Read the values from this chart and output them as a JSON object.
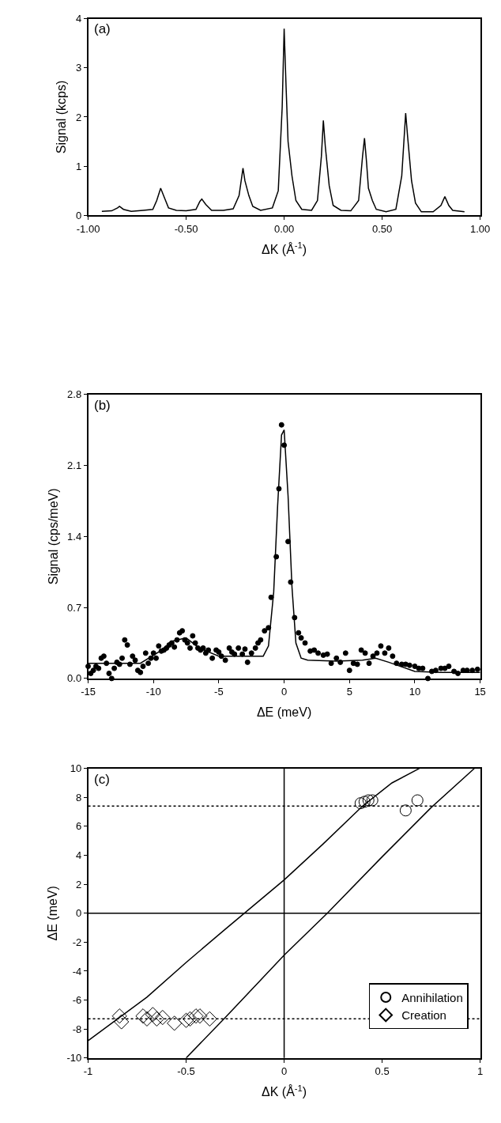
{
  "chart_data": [
    {
      "type": "line",
      "xlabel": "ΔK (Å$^{-1}$)",
      "ylabel": "Signal (kcps)",
      "annotations": [
        "(a)"
      ],
      "xlim": [
        -1,
        1
      ],
      "xticks": [
        {
          "value": -1,
          "label": "-1.00"
        },
        {
          "value": -0.5,
          "label": "-0.50"
        },
        {
          "value": 0,
          "label": "0.00"
        },
        {
          "value": 0.5,
          "label": "0.50"
        },
        {
          "value": 1,
          "label": "1.00"
        }
      ],
      "ylim": [
        0,
        4
      ],
      "yticks": [
        0,
        1,
        2,
        3,
        4
      ],
      "grid": false,
      "legend": false,
      "marker": "none",
      "series": [
        {
          "color": "#000000",
          "x": [
            -0.93,
            -0.88,
            -0.85,
            -0.84,
            -0.82,
            -0.78,
            -0.72,
            -0.67,
            -0.65,
            -0.63,
            -0.61,
            -0.59,
            -0.55,
            -0.5,
            -0.45,
            -0.43,
            -0.42,
            -0.4,
            -0.37,
            -0.31,
            -0.26,
            -0.23,
            -0.21,
            -0.2,
            -0.18,
            -0.16,
            -0.12,
            -0.06,
            -0.03,
            -0.01,
            0.0,
            0.01,
            0.02,
            0.04,
            0.06,
            0.09,
            0.14,
            0.17,
            0.19,
            0.2,
            0.21,
            0.23,
            0.25,
            0.29,
            0.34,
            0.38,
            0.4,
            0.41,
            0.42,
            0.43,
            0.45,
            0.47,
            0.52,
            0.57,
            0.6,
            0.62,
            0.63,
            0.65,
            0.67,
            0.7,
            0.76,
            0.8,
            0.82,
            0.84,
            0.86,
            0.92
          ],
          "values": [
            0.08,
            0.09,
            0.15,
            0.18,
            0.12,
            0.08,
            0.1,
            0.12,
            0.3,
            0.55,
            0.35,
            0.15,
            0.1,
            0.09,
            0.12,
            0.28,
            0.33,
            0.22,
            0.1,
            0.1,
            0.13,
            0.4,
            0.96,
            0.7,
            0.4,
            0.18,
            0.1,
            0.15,
            0.5,
            2.2,
            3.8,
            2.6,
            1.5,
            0.8,
            0.3,
            0.12,
            0.1,
            0.3,
            1.2,
            1.93,
            1.4,
            0.6,
            0.2,
            0.1,
            0.09,
            0.3,
            1.2,
            1.57,
            1.1,
            0.55,
            0.3,
            0.12,
            0.07,
            0.12,
            0.8,
            2.08,
            1.6,
            0.7,
            0.25,
            0.07,
            0.07,
            0.2,
            0.38,
            0.2,
            0.1,
            0.07
          ]
        }
      ]
    },
    {
      "type": "scatter",
      "xlabel": "ΔE (meV)",
      "ylabel": "Signal (cps/meV)",
      "annotations": [
        "(b)"
      ],
      "xlim": [
        -15,
        15
      ],
      "xticks": [
        -15,
        -10,
        -5,
        0,
        5,
        10,
        15
      ],
      "ylim": [
        0,
        2.8
      ],
      "yticks": [
        {
          "value": 0,
          "label": "0.0"
        },
        0.7,
        1.4,
        2.1,
        2.8
      ],
      "grid": false,
      "legend": false,
      "marker": "circle",
      "series": [
        {
          "color": "#000000",
          "x": [
            -15,
            -14.8,
            -14.6,
            -14.4,
            -14.2,
            -14,
            -13.8,
            -13.6,
            -13.4,
            -13.2,
            -13,
            -12.8,
            -12.6,
            -12.4,
            -12.2,
            -12,
            -11.8,
            -11.6,
            -11.4,
            -11.2,
            -11,
            -10.8,
            -10.6,
            -10.4,
            -10.2,
            -10,
            -9.8,
            -9.6,
            -9.4,
            -9.2,
            -9,
            -8.8,
            -8.6,
            -8.4,
            -8.2,
            -8,
            -7.8,
            -7.6,
            -7.4,
            -7.2,
            -7,
            -6.8,
            -6.6,
            -6.4,
            -6.2,
            -6,
            -5.8,
            -5.5,
            -5.2,
            -5,
            -4.8,
            -4.5,
            -4.2,
            -4,
            -3.8,
            -3.5,
            -3.2,
            -3,
            -2.8,
            -2.5,
            -2.2,
            -2,
            -1.8,
            -1.5,
            -1.2,
            -1,
            -0.6,
            -0.4,
            -0.2,
            0.0,
            0.3,
            0.5,
            0.8,
            1.1,
            1.3,
            1.6,
            2,
            2.3,
            2.6,
            3,
            3.3,
            3.6,
            4,
            4.3,
            4.7,
            5,
            5.3,
            5.6,
            5.9,
            6.2,
            6.5,
            6.8,
            7.1,
            7.4,
            7.7,
            8,
            8.3,
            8.6,
            9,
            9.3,
            9.6,
            10,
            10.3,
            10.6,
            11,
            11.3,
            11.6,
            12,
            12.3,
            12.6,
            13,
            13.3,
            13.7,
            14,
            14.4,
            14.8
          ],
          "values": [
            0.12,
            0.05,
            0.08,
            0.12,
            0.1,
            0.2,
            0.22,
            0.15,
            0.05,
            0.0,
            0.1,
            0.16,
            0.14,
            0.2,
            0.38,
            0.33,
            0.14,
            0.22,
            0.18,
            0.08,
            0.06,
            0.12,
            0.25,
            0.15,
            0.2,
            0.25,
            0.2,
            0.32,
            0.27,
            0.28,
            0.3,
            0.33,
            0.35,
            0.31,
            0.38,
            0.45,
            0.47,
            0.38,
            0.35,
            0.3,
            0.42,
            0.35,
            0.3,
            0.28,
            0.3,
            0.25,
            0.28,
            0.2,
            0.28,
            0.26,
            0.22,
            0.18,
            0.3,
            0.26,
            0.24,
            0.3,
            0.24,
            0.29,
            0.16,
            0.25,
            0.3,
            0.35,
            0.38,
            0.47,
            0.5,
            0.8,
            1.2,
            1.87,
            2.5,
            2.3,
            1.35,
            0.95,
            0.6,
            0.45,
            0.4,
            0.35,
            0.27,
            0.28,
            0.25,
            0.23,
            0.24,
            0.15,
            0.2,
            0.16,
            0.25,
            0.08,
            0.15,
            0.14,
            0.28,
            0.25,
            0.15,
            0.22,
            0.25,
            0.32,
            0.25,
            0.3,
            0.22,
            0.15,
            0.14,
            0.14,
            0.13,
            0.12,
            0.1,
            0.1,
            0.0,
            0.07,
            0.08,
            0.1,
            0.1,
            0.12,
            0.07,
            0.05,
            0.08,
            0.08,
            0.08,
            0.09
          ]
        },
        {
          "type": "line",
          "marker": "none",
          "color": "#000000",
          "x": [
            -15,
            -11,
            -9.5,
            -8.5,
            -7.5,
            -6.5,
            -5,
            -3,
            -1.6,
            -1.2,
            -0.8,
            -0.5,
            -0.2,
            0.0,
            0.3,
            0.6,
            0.9,
            1.3,
            1.8,
            4,
            6,
            7,
            8,
            10,
            12,
            15
          ],
          "values": [
            0.15,
            0.15,
            0.27,
            0.37,
            0.4,
            0.3,
            0.22,
            0.22,
            0.22,
            0.32,
            0.85,
            1.7,
            2.4,
            2.45,
            1.8,
            0.9,
            0.35,
            0.2,
            0.18,
            0.17,
            0.18,
            0.2,
            0.16,
            0.07,
            0.06,
            0.06
          ]
        }
      ]
    },
    {
      "type": "scatter",
      "xlabel": "ΔK (Å$^{-1}$)",
      "ylabel": "ΔE (meV)",
      "annotations": [
        "(c)"
      ],
      "xlim": [
        -1,
        1
      ],
      "xticks": [
        -1,
        -0.5,
        0,
        0.5,
        1
      ],
      "ylim": [
        -10,
        10
      ],
      "yticks": [
        -10,
        -8,
        -6,
        -4,
        -2,
        0,
        2,
        4,
        6,
        8,
        10
      ],
      "grid": false,
      "legend": "bottom right",
      "ref_lines": [
        {
          "axis": "y",
          "value": 7.4,
          "line_style": "dotted"
        },
        {
          "axis": "y",
          "value": -7.3,
          "line_style": "dotted"
        },
        {
          "axis": "x",
          "value": 0,
          "line_style": "solid"
        },
        {
          "axis": "y",
          "value": 0,
          "line_style": "solid"
        }
      ],
      "series": [
        {
          "type": "line",
          "color": "#000000",
          "x": [
            -1,
            -0.7,
            -0.5,
            -0.3,
            0,
            0.2,
            0.4,
            0.55,
            0.69
          ],
          "values": [
            -8.8,
            -5.8,
            -3.4,
            -1.1,
            2.3,
            4.8,
            7.4,
            9.0,
            10
          ]
        },
        {
          "type": "line",
          "color": "#000000",
          "x": [
            -0.5,
            -0.3,
            0,
            0.22,
            0.5,
            0.75,
            0.97
          ],
          "values": [
            -10,
            -7.2,
            -2.9,
            0,
            3.9,
            7.3,
            10
          ]
        },
        {
          "name": "Annihilation",
          "marker": "circle",
          "color": "#000000",
          "x": [
            0.39,
            0.41,
            0.43,
            0.45,
            0.62,
            0.68
          ],
          "values": [
            7.6,
            7.7,
            7.8,
            7.8,
            7.1,
            7.8
          ]
        },
        {
          "name": "Creation",
          "marker": "diamond",
          "color": "#000000",
          "x": [
            -0.84,
            -0.83,
            -0.72,
            -0.7,
            -0.67,
            -0.65,
            -0.62,
            -0.56,
            -0.5,
            -0.48,
            -0.45,
            -0.43,
            -0.38
          ],
          "values": [
            -7.1,
            -7.5,
            -7.1,
            -7.3,
            -7.0,
            -7.3,
            -7.2,
            -7.6,
            -7.4,
            -7.3,
            -7.1,
            -7.1,
            -7.3
          ]
        }
      ]
    }
  ]
}
